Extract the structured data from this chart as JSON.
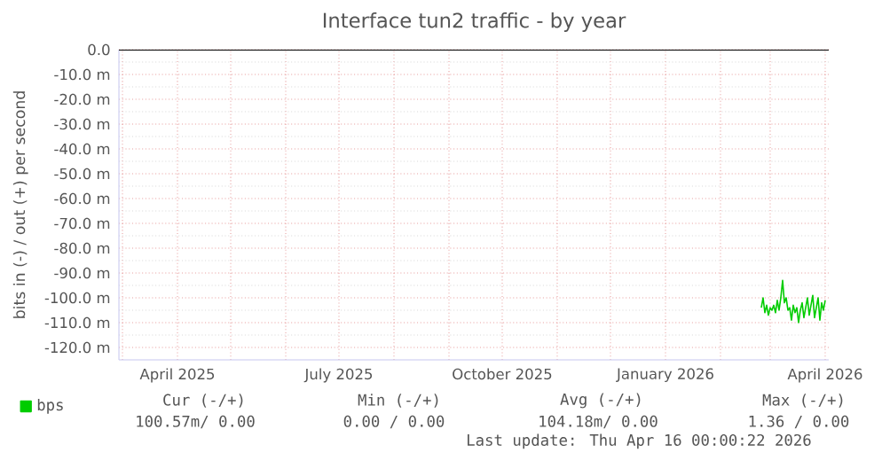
{
  "chart_data": {
    "type": "line",
    "title": "Interface tun2 traffic - by year",
    "ylabel": "bits in (-) / out (+) per second",
    "xlim": [
      "2025-02-27",
      "2026-04-03"
    ],
    "xticks": [
      {
        "value": "2025-03-01",
        "label": null
      },
      {
        "value": "2025-04-01",
        "label": "April 2025"
      },
      {
        "value": "2025-05-01",
        "label": null
      },
      {
        "value": "2025-06-01",
        "label": null
      },
      {
        "value": "2025-07-01",
        "label": "July 2025"
      },
      {
        "value": "2025-08-01",
        "label": null
      },
      {
        "value": "2025-09-01",
        "label": null
      },
      {
        "value": "2025-10-01",
        "label": "October 2025"
      },
      {
        "value": "2025-11-01",
        "label": null
      },
      {
        "value": "2025-12-01",
        "label": null
      },
      {
        "value": "2026-01-01",
        "label": "January 2026"
      },
      {
        "value": "2026-02-01",
        "label": null
      },
      {
        "value": "2026-03-01",
        "label": null
      },
      {
        "value": "2026-04-01",
        "label": "April 2026"
      }
    ],
    "ylim": [
      -125,
      0
    ],
    "yticks": [
      {
        "value": 0,
        "label": "0.0"
      },
      {
        "value": -10,
        "label": "-10.0 m"
      },
      {
        "value": -20,
        "label": "-20.0 m"
      },
      {
        "value": -30,
        "label": "-30.0 m"
      },
      {
        "value": -40,
        "label": "-40.0 m"
      },
      {
        "value": -50,
        "label": "-50.0 m"
      },
      {
        "value": -60,
        "label": "-60.0 m"
      },
      {
        "value": -70,
        "label": "-70.0 m"
      },
      {
        "value": -80,
        "label": "-80.0 m"
      },
      {
        "value": -90,
        "label": "-90.0 m"
      },
      {
        "value": -100,
        "label": "-100.0 m"
      },
      {
        "value": -110,
        "label": "-110.0 m"
      },
      {
        "value": -120,
        "label": "-120.0 m"
      }
    ],
    "grid": true,
    "legend": "bottom left",
    "marker": "none",
    "line_style": "solid",
    "series": [
      {
        "name": "bps",
        "color": "#00cc00",
        "x": [
          "2026-02-24",
          "2026-02-25",
          "2026-02-26",
          "2026-02-27",
          "2026-02-28",
          "2026-03-01",
          "2026-03-02",
          "2026-03-03",
          "2026-03-04",
          "2026-03-05",
          "2026-03-06",
          "2026-03-07",
          "2026-03-08",
          "2026-03-09",
          "2026-03-10",
          "2026-03-11",
          "2026-03-12",
          "2026-03-13",
          "2026-03-14",
          "2026-03-15",
          "2026-03-16",
          "2026-03-17",
          "2026-03-18",
          "2026-03-19",
          "2026-03-20",
          "2026-03-21",
          "2026-03-22",
          "2026-03-23",
          "2026-03-24",
          "2026-03-25",
          "2026-03-26",
          "2026-03-27",
          "2026-03-28",
          "2026-03-29",
          "2026-03-30",
          "2026-03-31",
          "2026-04-01"
        ],
        "values": [
          -104,
          -100,
          -106,
          -103,
          -107,
          -104,
          -105,
          -103,
          -106,
          -101,
          -105,
          -100,
          -93,
          -102,
          -100,
          -105,
          -104,
          -109,
          -103,
          -106,
          -104,
          -110,
          -105,
          -102,
          -108,
          -104,
          -100,
          -107,
          -103,
          -99,
          -108,
          -104,
          -100,
          -109,
          -102,
          -105,
          -101
        ]
      }
    ],
    "ref_lines": [
      {
        "axis": "y",
        "value": 0,
        "color": "#000000"
      }
    ],
    "annotations": [
      "Cur (-/+)",
      "Min (-/+)",
      "Avg (-/+)",
      "Max (-/+)",
      "100.57m/  0.00",
      "0.00 /   0.00",
      "104.18m/   0.00",
      "1.36 /   0.00",
      "Last update: Thu Apr 16 00:00:22 2026"
    ]
  }
}
